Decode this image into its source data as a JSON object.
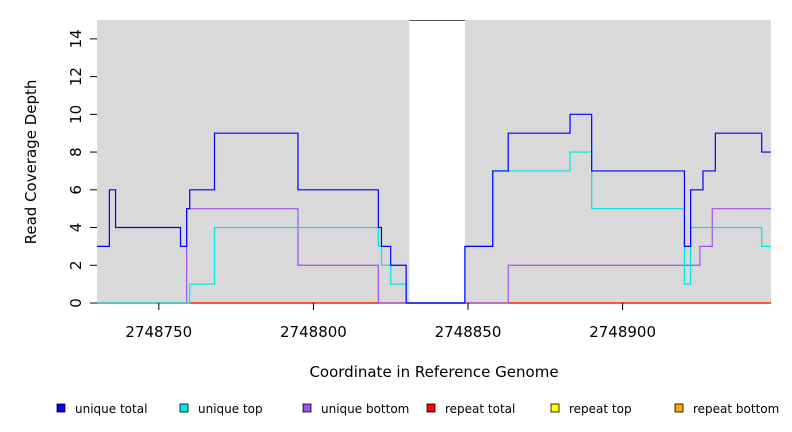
{
  "chart_data": {
    "type": "line",
    "title": "",
    "xlabel": "Coordinate in Reference Genome",
    "ylabel": "Read Coverage Depth",
    "xlim": [
      2748730,
      2748948
    ],
    "ylim": [
      0,
      15
    ],
    "x_ticks": [
      2748750,
      2748800,
      2748850,
      2748900
    ],
    "y_ticks": [
      0,
      2,
      4,
      6,
      8,
      10,
      12,
      14
    ],
    "gap_region": [
      2748831,
      2748849
    ],
    "grid": false,
    "legend_position": "bottom",
    "series": [
      {
        "name": "unique total",
        "color": "#0000ff",
        "steps": [
          [
            2748730,
            3
          ],
          [
            2748734,
            6
          ],
          [
            2748736,
            4
          ],
          [
            2748757,
            3
          ],
          [
            2748759,
            5
          ],
          [
            2748760,
            6
          ],
          [
            2748768,
            9
          ],
          [
            2748795,
            6
          ],
          [
            2748821,
            4
          ],
          [
            2748822,
            3
          ],
          [
            2748825,
            2
          ],
          [
            2748830,
            0
          ],
          [
            2748849,
            3
          ],
          [
            2748858,
            7
          ],
          [
            2748863,
            9
          ],
          [
            2748883,
            10
          ],
          [
            2748890,
            7
          ],
          [
            2748920,
            3
          ],
          [
            2748922,
            6
          ],
          [
            2748926,
            7
          ],
          [
            2748930,
            9
          ],
          [
            2748945,
            8
          ],
          [
            2748948,
            8
          ]
        ]
      },
      {
        "name": "unique top",
        "color": "#00e5e5",
        "steps": [
          [
            2748730,
            0
          ],
          [
            2748760,
            1
          ],
          [
            2748768,
            4
          ],
          [
            2748821,
            3
          ],
          [
            2748822,
            2
          ],
          [
            2748825,
            1
          ],
          [
            2748830,
            0
          ],
          [
            2748849,
            3
          ],
          [
            2748858,
            7
          ],
          [
            2748883,
            8
          ],
          [
            2748890,
            5
          ],
          [
            2748920,
            1
          ],
          [
            2748922,
            4
          ],
          [
            2748945,
            3
          ],
          [
            2748948,
            3
          ]
        ]
      },
      {
        "name": "unique bottom",
        "color": "#a050f0",
        "steps": [
          [
            2748730,
            0
          ],
          [
            2748759,
            5
          ],
          [
            2748795,
            2
          ],
          [
            2748821,
            0
          ],
          [
            2748863,
            2
          ],
          [
            2748925,
            3
          ],
          [
            2748929,
            5
          ],
          [
            2748948,
            5
          ]
        ]
      },
      {
        "name": "repeat total",
        "color": "#ff0000",
        "steps": [
          [
            2748730,
            0
          ],
          [
            2748948,
            0
          ]
        ]
      },
      {
        "name": "repeat top",
        "color": "#ffff00",
        "steps": [
          [
            2748730,
            0
          ],
          [
            2748948,
            0
          ]
        ]
      },
      {
        "name": "repeat bottom",
        "color": "#ffa500",
        "steps": [
          [
            2748730,
            0
          ],
          [
            2748948,
            0
          ]
        ]
      }
    ]
  }
}
